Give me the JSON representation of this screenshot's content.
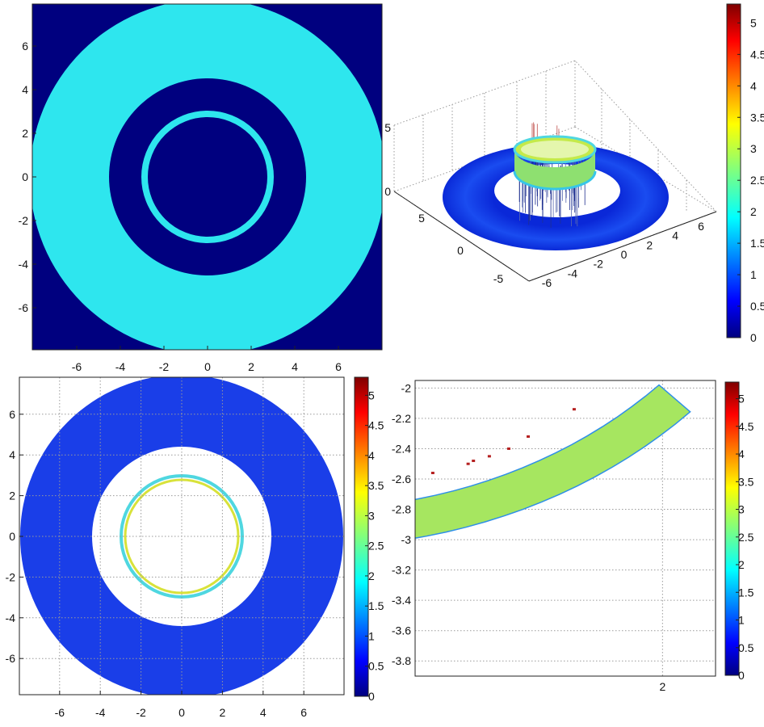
{
  "colors": {
    "dark_blue": "#00007f",
    "cyan": "#2ee6ee",
    "surface_blue": "#0a33e0",
    "white": "#ffffff"
  },
  "colormap": "jet",
  "chart_data": [
    {
      "id": "panel-top-left",
      "type": "heatmap",
      "title": "",
      "xlim": [
        -8,
        8
      ],
      "ylim": [
        -8,
        7.8
      ],
      "xticks": [
        "-6",
        "-4",
        "-2",
        "0",
        "2",
        "4",
        "6"
      ],
      "yticks": [
        "6",
        "4",
        "2",
        "0",
        "-2",
        "-4",
        "-6"
      ],
      "regions": [
        {
          "shape": "annulus",
          "r_inner": 4.5,
          "r_outer": 8.1,
          "color": "cyan"
        },
        {
          "shape": "annulus",
          "r_inner": 2.75,
          "r_outer": 3.05,
          "color": "cyan"
        }
      ],
      "background": "dark_blue",
      "grid": false
    },
    {
      "id": "panel-top-right",
      "type": "surface3d",
      "xlim": [
        -7,
        7
      ],
      "ylim": [
        -7,
        7
      ],
      "zlim": [
        0,
        5
      ],
      "xticks": [
        "-6",
        "-4",
        "-2",
        "0",
        "2",
        "4",
        "6"
      ],
      "yticks": [
        "-5",
        "0",
        "5"
      ],
      "zticks": [
        "0",
        "5"
      ],
      "surface": {
        "annulus_r_inner": 4.4,
        "annulus_r_outer": 8.0,
        "z": 0.2,
        "ring_radius": 2.9,
        "ring_height": 3.0
      },
      "colorbar": {
        "ticks": [
          "0",
          "0.5",
          "1",
          "1.5",
          "2",
          "2.5",
          "3",
          "3.5",
          "4",
          "4.5",
          "5"
        ],
        "max": 5.3
      },
      "grid": true
    },
    {
      "id": "panel-bottom-left",
      "type": "heatmap",
      "xlim": [
        -8,
        8
      ],
      "ylim": [
        -7.8,
        7.8
      ],
      "xticks": [
        "-6",
        "-4",
        "-2",
        "0",
        "2",
        "4",
        "6"
      ],
      "yticks": [
        "6",
        "4",
        "2",
        "0",
        "-2",
        "-4",
        "-6"
      ],
      "regions": [
        {
          "shape": "annulus",
          "r_inner": 4.4,
          "r_outer": 8.0,
          "value": 0.45
        },
        {
          "shape": "annulus",
          "r_inner": 2.8,
          "r_outer": 3.05,
          "value": 2.8
        }
      ],
      "colorbar": {
        "ticks": [
          "0",
          "0.5",
          "1",
          "1.5",
          "2",
          "2.5",
          "3",
          "3.5",
          "4",
          "4.5",
          "5"
        ],
        "max": 5.3
      },
      "grid": true
    },
    {
      "id": "panel-bottom-right",
      "type": "heatmap",
      "xlim": [
        0.6,
        2.3
      ],
      "ylim": [
        -3.9,
        -1.95
      ],
      "xticks": [
        "2"
      ],
      "yticks": [
        "-2",
        "-2.2",
        "-2.4",
        "-2.6",
        "-2.8",
        "-3",
        "-3.2",
        "-3.4",
        "-3.6",
        "-3.8"
      ],
      "band": {
        "r_inner": 2.8,
        "r_outer": 3.05,
        "value": 3.0
      },
      "outer_patch_radius": 4.4,
      "scatter_points": [
        [
          0.7,
          -2.56
        ],
        [
          0.9,
          -2.5
        ],
        [
          0.93,
          -2.48
        ],
        [
          1.02,
          -2.45
        ],
        [
          1.13,
          -2.4
        ],
        [
          1.24,
          -2.32
        ],
        [
          1.5,
          -2.14
        ]
      ],
      "colorbar": {
        "ticks": [
          "0",
          "0.5",
          "1",
          "1.5",
          "2",
          "2.5",
          "3",
          "3.5",
          "4",
          "4.5",
          "5"
        ],
        "max": 5.3
      },
      "grid": true
    }
  ]
}
